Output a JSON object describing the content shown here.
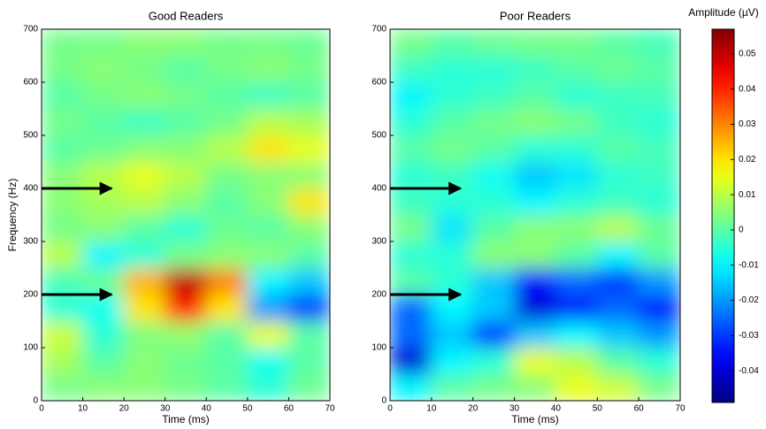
{
  "chart_data": [
    {
      "type": "heatmap",
      "title": "Good Readers",
      "xlabel": "Time (ms)",
      "ylabel": "Frequency (Hz)",
      "x": [
        5,
        15,
        25,
        35,
        45,
        55,
        65
      ],
      "y": [
        25,
        75,
        125,
        175,
        225,
        275,
        325,
        375,
        425,
        475,
        525,
        575,
        625,
        675
      ],
      "z": [
        [
          0.003,
          0.005,
          0.005,
          0.003,
          0,
          -0.005,
          0.002
        ],
        [
          0.008,
          0,
          0.005,
          0.002,
          0,
          -0.008,
          0
        ],
        [
          0.012,
          -0.005,
          0.004,
          0.006,
          0,
          0.015,
          0
        ],
        [
          -0.005,
          -0.008,
          0.02,
          0.04,
          0.02,
          -0.02,
          -0.03
        ],
        [
          -0.002,
          0.002,
          0.025,
          0.05,
          0.03,
          -0.01,
          -0.015
        ],
        [
          0.01,
          -0.01,
          -0.005,
          0.003,
          0.005,
          0.005,
          0
        ],
        [
          0.003,
          0.005,
          0,
          -0.005,
          0.002,
          0,
          0.005
        ],
        [
          0.005,
          0.008,
          0.01,
          0.005,
          0,
          0.005,
          0.02
        ],
        [
          0.005,
          0.01,
          0.015,
          0.01,
          0.003,
          0.005,
          0.005
        ],
        [
          0,
          0.002,
          0.005,
          0.005,
          0.01,
          0.02,
          0.015
        ],
        [
          0.003,
          0,
          -0.003,
          0,
          0.003,
          0.01,
          0.008
        ],
        [
          0,
          0.003,
          0.005,
          0.003,
          0,
          -0.003,
          0
        ],
        [
          0.003,
          0.005,
          0.003,
          0,
          0.003,
          0.005,
          0.003
        ],
        [
          0.003,
          0.003,
          0.005,
          0.005,
          0.003,
          0.003,
          0.002
        ]
      ],
      "xlim": [
        0,
        70
      ],
      "ylim": [
        0,
        700
      ],
      "xticks": [
        0,
        10,
        20,
        30,
        40,
        50,
        60,
        70
      ],
      "yticks": [
        0,
        100,
        200,
        300,
        400,
        500,
        600,
        700
      ],
      "arrows": [
        {
          "y": 400,
          "x_end": 17
        },
        {
          "y": 200,
          "x_end": 17
        }
      ]
    },
    {
      "type": "heatmap",
      "title": "Poor Readers",
      "xlabel": "Time (ms)",
      "x": [
        5,
        15,
        25,
        35,
        45,
        55,
        65
      ],
      "y": [
        25,
        75,
        125,
        175,
        225,
        275,
        325,
        375,
        425,
        475,
        525,
        575,
        625,
        675
      ],
      "z": [
        [
          -0.01,
          0,
          0.003,
          0.005,
          0.015,
          0.012,
          0.003
        ],
        [
          -0.04,
          -0.01,
          -0.005,
          0.015,
          0.01,
          0,
          -0.005
        ],
        [
          -0.025,
          -0.015,
          -0.03,
          -0.015,
          -0.01,
          -0.015,
          -0.02
        ],
        [
          -0.025,
          -0.01,
          -0.015,
          -0.04,
          -0.035,
          -0.025,
          -0.035
        ],
        [
          0,
          -0.005,
          -0.015,
          -0.035,
          -0.025,
          -0.03,
          -0.02
        ],
        [
          -0.005,
          -0.005,
          0.005,
          0.005,
          0,
          -0.01,
          0
        ],
        [
          0.003,
          -0.012,
          0,
          0.005,
          0.005,
          0.01,
          0.002
        ],
        [
          -0.003,
          -0.005,
          -0.005,
          -0.01,
          -0.005,
          -0.003,
          -0.005
        ],
        [
          -0.005,
          -0.003,
          -0.008,
          -0.015,
          -0.012,
          -0.005,
          -0.003
        ],
        [
          0,
          0.003,
          0,
          -0.005,
          -0.005,
          0,
          -0.002
        ],
        [
          -0.005,
          0,
          0.003,
          0.005,
          0.003,
          -0.003,
          -0.005
        ],
        [
          -0.01,
          -0.005,
          -0.003,
          0,
          -0.005,
          -0.003,
          -0.002
        ],
        [
          -0.003,
          -0.005,
          -0.005,
          -0.003,
          0,
          0.002,
          0
        ],
        [
          0.003,
          0,
          0.002,
          0.003,
          0.003,
          0,
          -0.002
        ]
      ],
      "xlim": [
        0,
        70
      ],
      "ylim": [
        0,
        700
      ],
      "xticks": [
        0,
        10,
        20,
        30,
        40,
        50,
        60,
        70
      ],
      "yticks": [
        0,
        100,
        200,
        300,
        400,
        500,
        600,
        700
      ],
      "arrows": [
        {
          "y": 400,
          "x_end": 17
        },
        {
          "y": 200,
          "x_end": 17
        }
      ]
    },
    {
      "type": "colorbar",
      "title": "Amplitude (µV)",
      "colormap": "jet",
      "zlim": [
        -0.049,
        0.057
      ],
      "zticks": [
        0.05,
        0.04,
        0.03,
        0.02,
        0.01,
        0,
        -0.01,
        -0.02,
        -0.03,
        -0.04
      ]
    }
  ]
}
